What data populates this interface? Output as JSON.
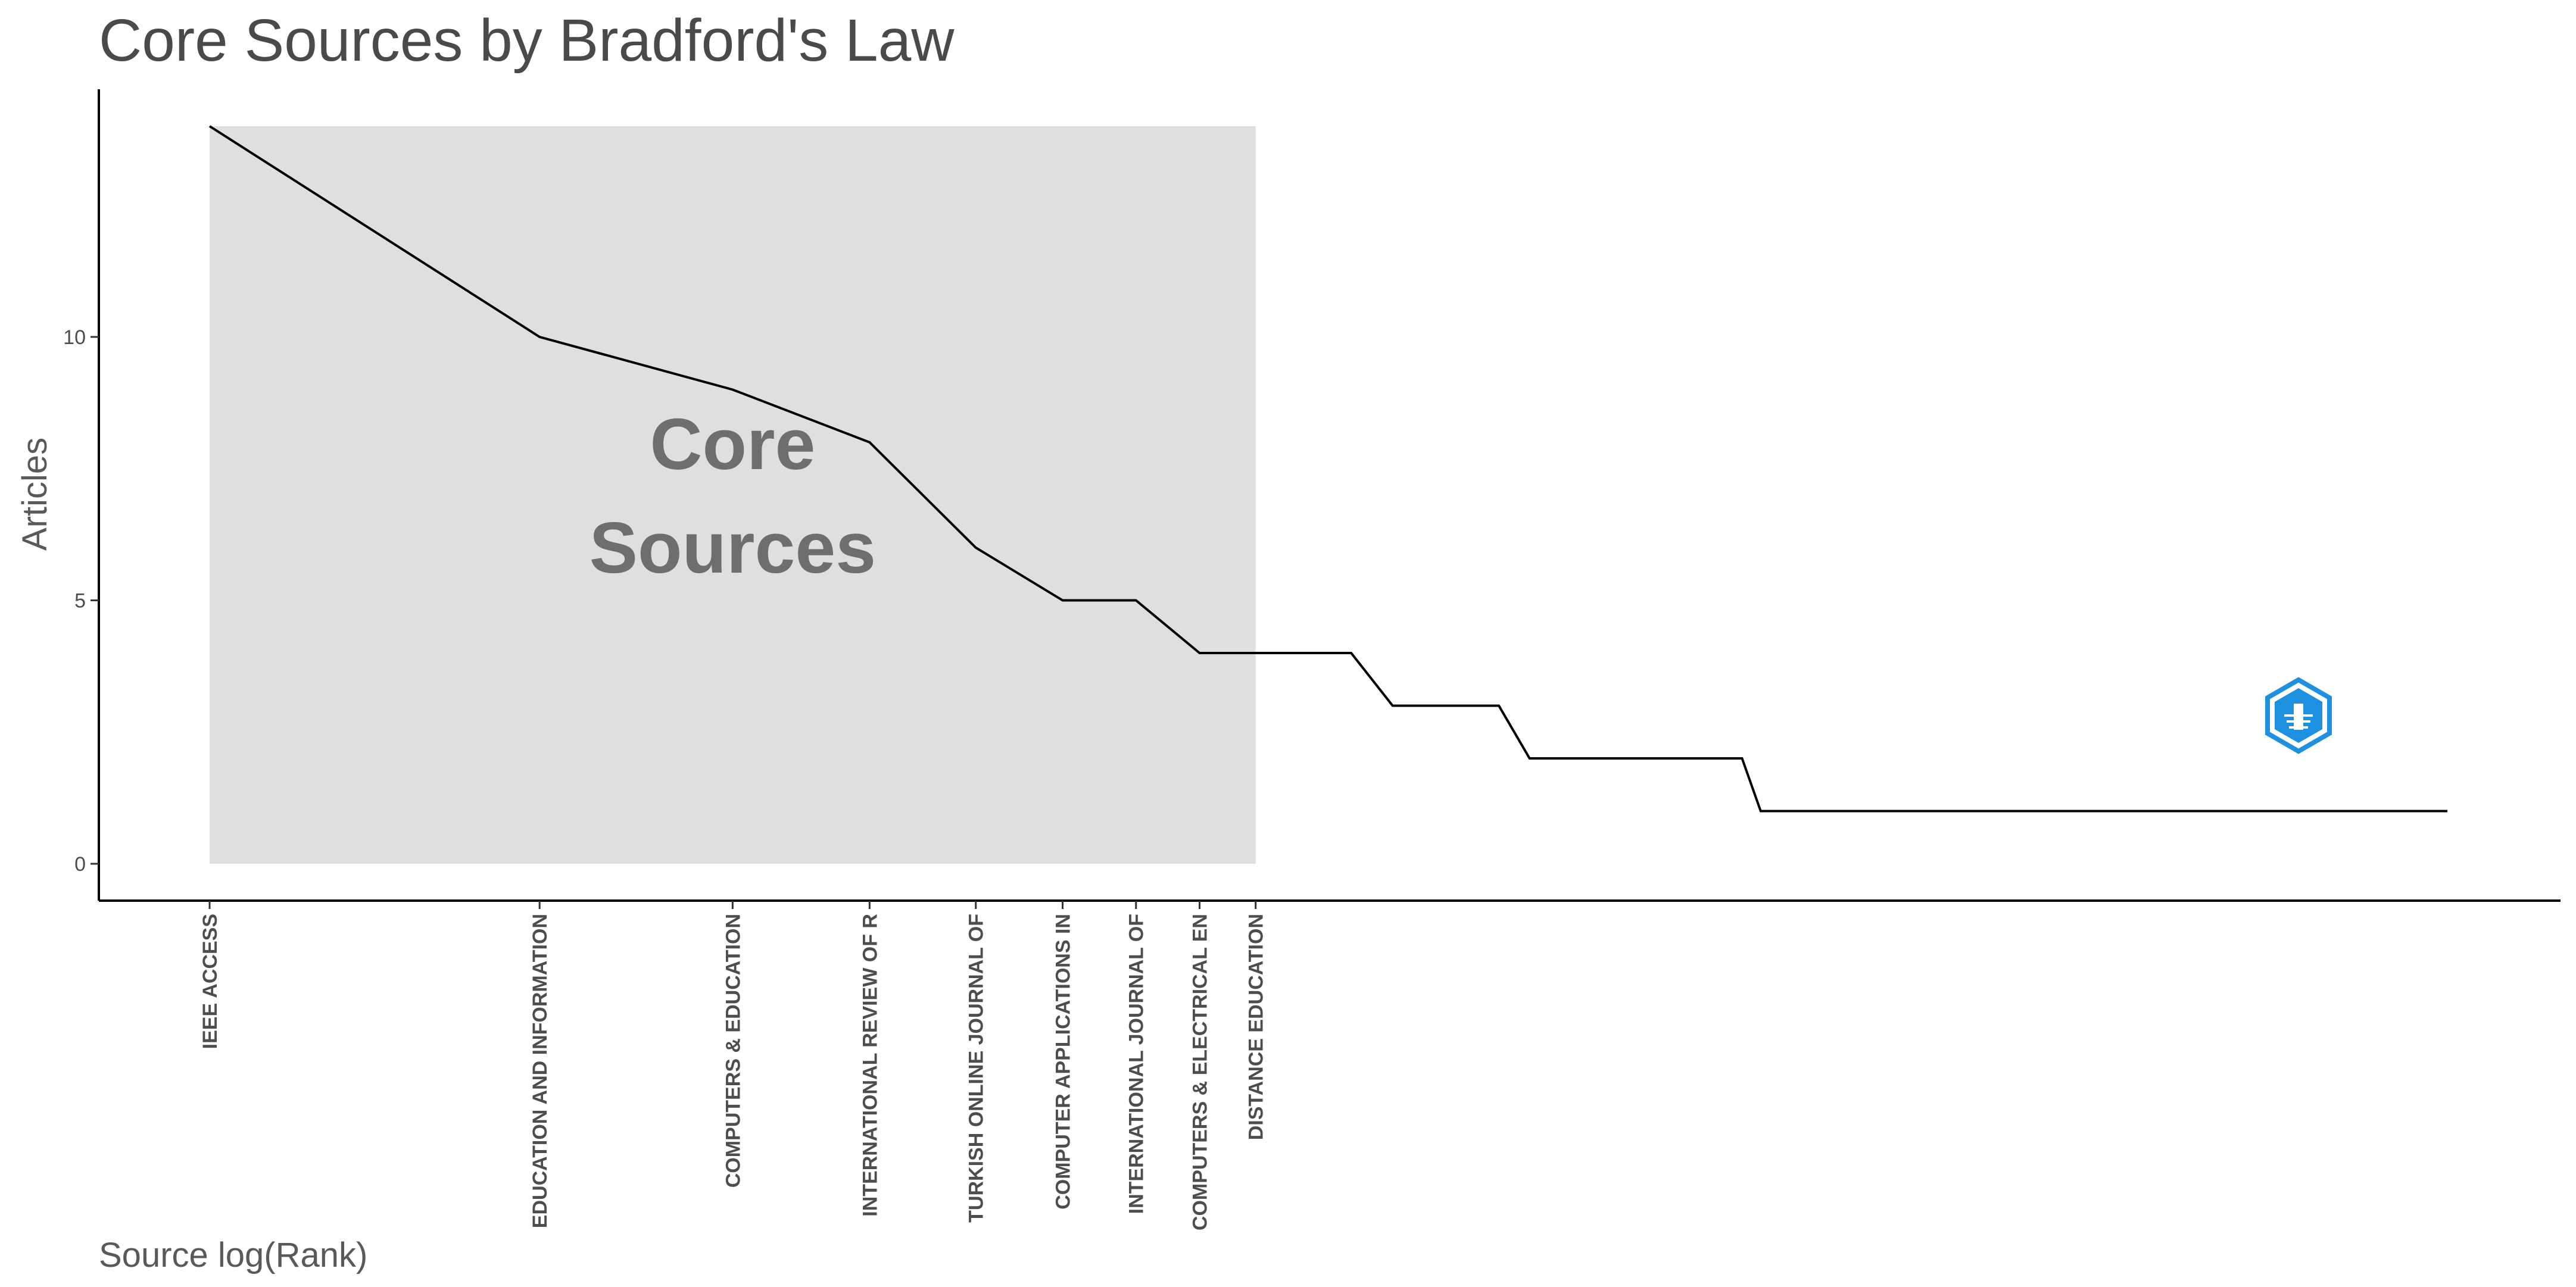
{
  "chart_data": {
    "type": "line",
    "title": "Core Sources by Bradford's Law",
    "xlabel": "Source log(Rank)",
    "ylabel": "Articles",
    "xscale": "log",
    "ylim": [
      -0.7,
      14.7
    ],
    "yticks": [
      0,
      5,
      10
    ],
    "grid": false,
    "core_zone": {
      "label_line1": "Core",
      "label_line2": "Sources",
      "color": "#dfdfdf"
    },
    "tick_labels": [
      "IEEE ACCESS",
      "EDUCATION AND INFORMATION",
      "COMPUTERS & EDUCATION",
      "INTERNATIONAL REVIEW OF R",
      "TURKISH ONLINE JOURNAL OF",
      "COMPUTER APPLICATIONS IN",
      "INTERNATIONAL JOURNAL OF",
      "COMPUTERS & ELECTRICAL EN",
      "DISTANCE EDUCATION"
    ],
    "series": [
      {
        "line_color": "#000000",
        "x": [
          1,
          2,
          3,
          4,
          5,
          6,
          7,
          8,
          9,
          11,
          12,
          15,
          16,
          25,
          26,
          110
        ],
        "y": [
          14,
          10,
          9,
          8,
          6,
          5,
          5,
          4,
          4,
          4,
          3,
          3,
          2,
          2,
          1,
          1
        ]
      }
    ],
    "watermark_icon": "bibliometrix-logo-icon",
    "watermark_color": "#1e90e0"
  }
}
